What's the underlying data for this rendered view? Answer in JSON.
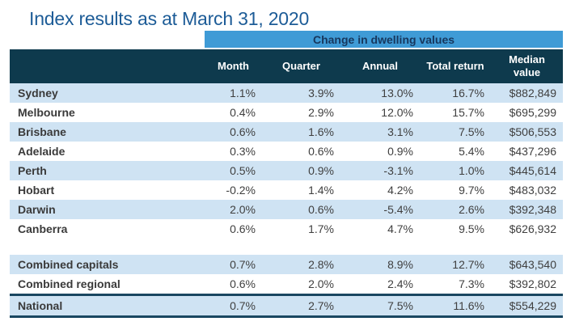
{
  "title": "Index results as at March 31, 2020",
  "table": {
    "banner": "Change in dwelling values",
    "columns": [
      "Month",
      "Quarter",
      "Annual",
      "Total return",
      "Median value"
    ],
    "rows": [
      {
        "label": "Sydney",
        "month": "1.1%",
        "quarter": "3.9%",
        "annual": "13.0%",
        "total_return": "16.7%",
        "median_value": "$882,849"
      },
      {
        "label": "Melbourne",
        "month": "0.4%",
        "quarter": "2.9%",
        "annual": "12.0%",
        "total_return": "15.7%",
        "median_value": "$695,299"
      },
      {
        "label": "Brisbane",
        "month": "0.6%",
        "quarter": "1.6%",
        "annual": "3.1%",
        "total_return": "7.5%",
        "median_value": "$506,553"
      },
      {
        "label": "Adelaide",
        "month": "0.3%",
        "quarter": "0.6%",
        "annual": "0.9%",
        "total_return": "5.4%",
        "median_value": "$437,296"
      },
      {
        "label": "Perth",
        "month": "0.5%",
        "quarter": "0.9%",
        "annual": "-3.1%",
        "total_return": "1.0%",
        "median_value": "$445,614"
      },
      {
        "label": "Hobart",
        "month": "-0.2%",
        "quarter": "1.4%",
        "annual": "4.2%",
        "total_return": "9.7%",
        "median_value": "$483,032"
      },
      {
        "label": "Darwin",
        "month": "2.0%",
        "quarter": "0.6%",
        "annual": "-5.4%",
        "total_return": "2.6%",
        "median_value": "$392,348"
      },
      {
        "label": "Canberra",
        "month": "0.6%",
        "quarter": "1.7%",
        "annual": "4.7%",
        "total_return": "9.5%",
        "median_value": "$626,932"
      },
      {
        "label": "Combined capitals",
        "month": "0.7%",
        "quarter": "2.8%",
        "annual": "8.9%",
        "total_return": "12.7%",
        "median_value": "$643,540"
      },
      {
        "label": "Combined regional",
        "month": "0.6%",
        "quarter": "2.0%",
        "annual": "2.4%",
        "total_return": "7.3%",
        "median_value": "$392,802"
      },
      {
        "label": "National",
        "month": "0.7%",
        "quarter": "2.7%",
        "annual": "7.5%",
        "total_return": "11.6%",
        "median_value": "$554,229"
      }
    ]
  },
  "colors": {
    "title_blue": "#1d5c97",
    "banner_blue": "#3f9bd6",
    "banner_text_navy": "#17375d",
    "header_teal": "#0e3a4d",
    "row_alt_blue": "#cfe3f3",
    "value_text": "#3f3f3f",
    "rule_navy": "#1a4761"
  }
}
